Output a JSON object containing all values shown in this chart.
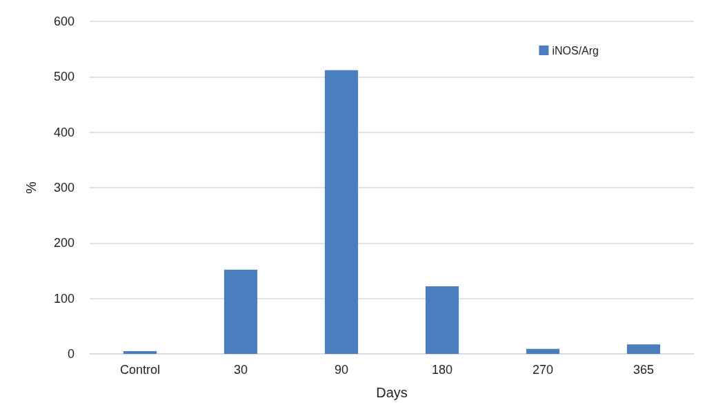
{
  "chart_data": {
    "type": "bar",
    "xlabel": "Days",
    "ylabel": "%",
    "categories": [
      "Control",
      "30",
      "90",
      "180",
      "270",
      "365"
    ],
    "series": [
      {
        "name": "iNOS/Arg",
        "color": "#4a7ebf",
        "values": [
          5,
          152,
          512,
          122,
          9,
          17
        ]
      }
    ],
    "ylim": [
      0,
      600
    ],
    "yticks": [
      0,
      100,
      200,
      300,
      400,
      500,
      600
    ],
    "grid": "y",
    "legend": "top right"
  }
}
